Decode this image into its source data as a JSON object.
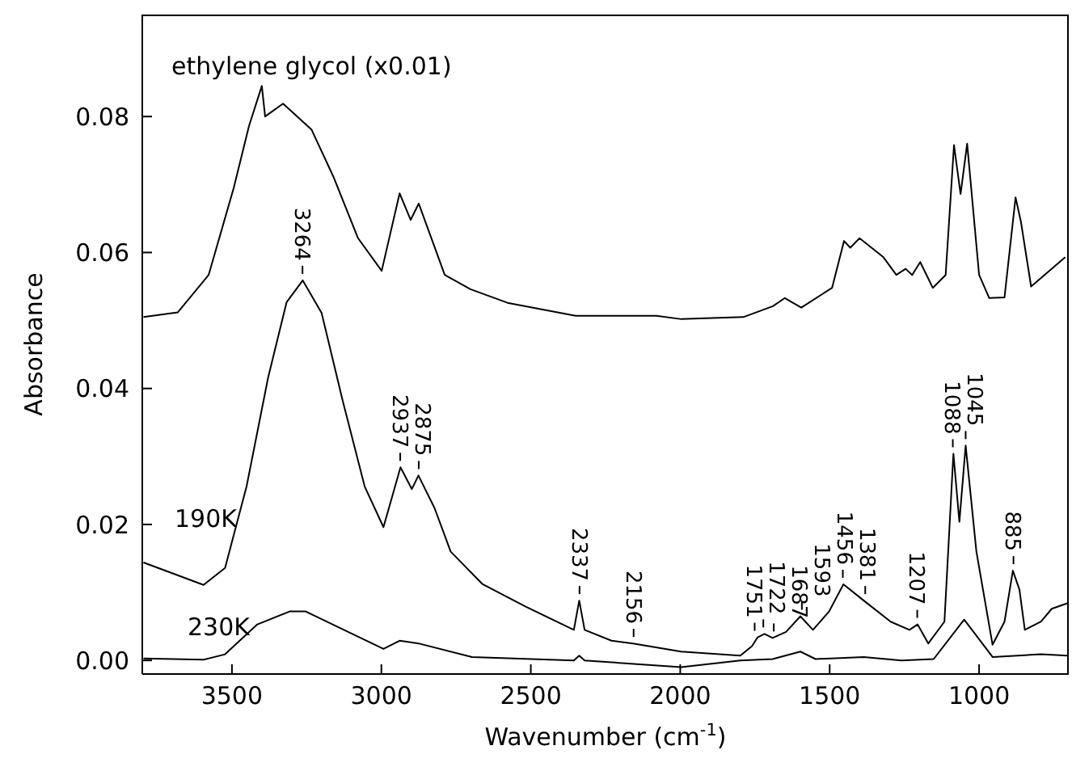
{
  "chart_data": {
    "type": "line",
    "xlabel": "Wavenumber (cm$^{-1}$)",
    "ylabel": "Absorbance",
    "xlim": [
      3800,
      700
    ],
    "xticks": [
      3500,
      3000,
      2500,
      2000,
      1500,
      1000
    ],
    "ylim": [
      -0.002,
      0.095
    ],
    "yticks": [
      {
        "value": 0,
        "label": "0.00"
      },
      {
        "value": 0.02,
        "label": "0.02"
      },
      {
        "value": 0.04,
        "label": "0.04"
      },
      {
        "value": 0.06,
        "label": "0.06"
      },
      {
        "value": 0.08,
        "label": "0.08"
      }
    ],
    "marker": "none",
    "line_style": "solid",
    "series": [
      {
        "name": "ethylene glycol (x0.01)",
        "color": "#000000",
        "x": [
          3796,
          3681,
          3578,
          3494,
          3443,
          3400,
          3389,
          3329,
          3234,
          3161,
          3078,
          2999,
          2939,
          2902,
          2875,
          2788,
          2702,
          2578,
          2350,
          2080,
          1996,
          1789,
          1690,
          1650,
          1595,
          1492,
          1452,
          1431,
          1400,
          1320,
          1277,
          1246,
          1224,
          1197,
          1155,
          1112,
          1084,
          1062,
          1040,
          1000,
          966,
          915,
          878,
          860,
          826,
          712
        ],
        "values": [
          0.0505,
          0.0512,
          0.0567,
          0.0695,
          0.0786,
          0.0845,
          0.08,
          0.0819,
          0.0781,
          0.0712,
          0.0621,
          0.0573,
          0.0687,
          0.0648,
          0.0672,
          0.0567,
          0.0546,
          0.0526,
          0.0507,
          0.0507,
          0.0502,
          0.0505,
          0.0521,
          0.0533,
          0.0519,
          0.0548,
          0.0617,
          0.0607,
          0.0621,
          0.0593,
          0.0567,
          0.0576,
          0.0567,
          0.0586,
          0.0548,
          0.0567,
          0.0758,
          0.0686,
          0.076,
          0.0567,
          0.0533,
          0.0534,
          0.0681,
          0.0645,
          0.055,
          0.0593
        ]
      },
      {
        "name": "190K",
        "color": "#000000",
        "x": [
          3796,
          3595,
          3523,
          3451,
          3379,
          3317,
          3263,
          3200,
          3130,
          3056,
          2993,
          2936,
          2898,
          2876,
          2822,
          2768,
          2661,
          2517,
          2356,
          2338,
          2320,
          2230,
          2158,
          1997,
          1799,
          1760,
          1741,
          1718,
          1691,
          1646,
          1598,
          1556,
          1502,
          1454,
          1386,
          1296,
          1233,
          1206,
          1170,
          1116,
          1086,
          1066,
          1045,
          1009,
          955,
          915,
          887,
          865,
          847,
          793,
          757,
          705
        ],
        "values": [
          0.0144,
          0.0111,
          0.0136,
          0.0256,
          0.0416,
          0.0527,
          0.0559,
          0.0511,
          0.0383,
          0.0256,
          0.0196,
          0.0284,
          0.0252,
          0.0272,
          0.0224,
          0.016,
          0.0112,
          0.0079,
          0.0045,
          0.0088,
          0.0045,
          0.0029,
          0.0025,
          0.0013,
          0.0007,
          0.0021,
          0.0034,
          0.0039,
          0.0033,
          0.0042,
          0.0065,
          0.0045,
          0.0072,
          0.0112,
          0.0088,
          0.0057,
          0.0045,
          0.0053,
          0.0025,
          0.0057,
          0.0304,
          0.0204,
          0.0316,
          0.016,
          0.0023,
          0.0057,
          0.0132,
          0.0104,
          0.0045,
          0.0057,
          0.0076,
          0.0084
        ]
      },
      {
        "name": "230K",
        "color": "#000000",
        "x": [
          3796,
          3595,
          3523,
          3415,
          3307,
          3253,
          3145,
          2993,
          2939,
          2876,
          2697,
          2356,
          2338,
          2320,
          1997,
          1799,
          1691,
          1598,
          1547,
          1386,
          1260,
          1152,
          1050,
          955,
          793,
          705
        ],
        "values": [
          0.0003,
          0.0001,
          0.0009,
          0.0053,
          0.0072,
          0.0072,
          0.0049,
          0.0017,
          0.0029,
          0.0025,
          0.0005,
          0,
          0.0007,
          0,
          -0.001,
          0,
          0.0002,
          0.0013,
          0.0002,
          0.0005,
          0,
          0.0002,
          0.006,
          0.0005,
          0.0009,
          0.0007
        ]
      }
    ],
    "annotations": [
      {
        "text": "3264",
        "x": 3264,
        "y": 0.0559
      },
      {
        "text": "2937",
        "x": 2937,
        "y": 0.0284
      },
      {
        "text": "2875",
        "x": 2875,
        "y": 0.0272
      },
      {
        "text": "2337",
        "x": 2337,
        "y": 0.0088
      },
      {
        "text": "2156",
        "x": 2156,
        "y": 0.0025
      },
      {
        "text": "1751",
        "x": 1751,
        "y": 0.0034
      },
      {
        "text": "1722",
        "x": 1722,
        "y": 0.0039
      },
      {
        "text": "1687",
        "x": 1687,
        "y": 0.0033
      },
      {
        "text": "1593",
        "x": 1593,
        "y": 0.0065
      },
      {
        "text": "1456",
        "x": 1456,
        "y": 0.0112
      },
      {
        "text": "1381",
        "x": 1381,
        "y": 0.0088
      },
      {
        "text": "1207",
        "x": 1207,
        "y": 0.0053
      },
      {
        "text": "1088",
        "x": 1088,
        "y": 0.0304
      },
      {
        "text": "1045",
        "x": 1045,
        "y": 0.0316
      },
      {
        "text": "885",
        "x": 885,
        "y": 0.0132
      }
    ]
  }
}
